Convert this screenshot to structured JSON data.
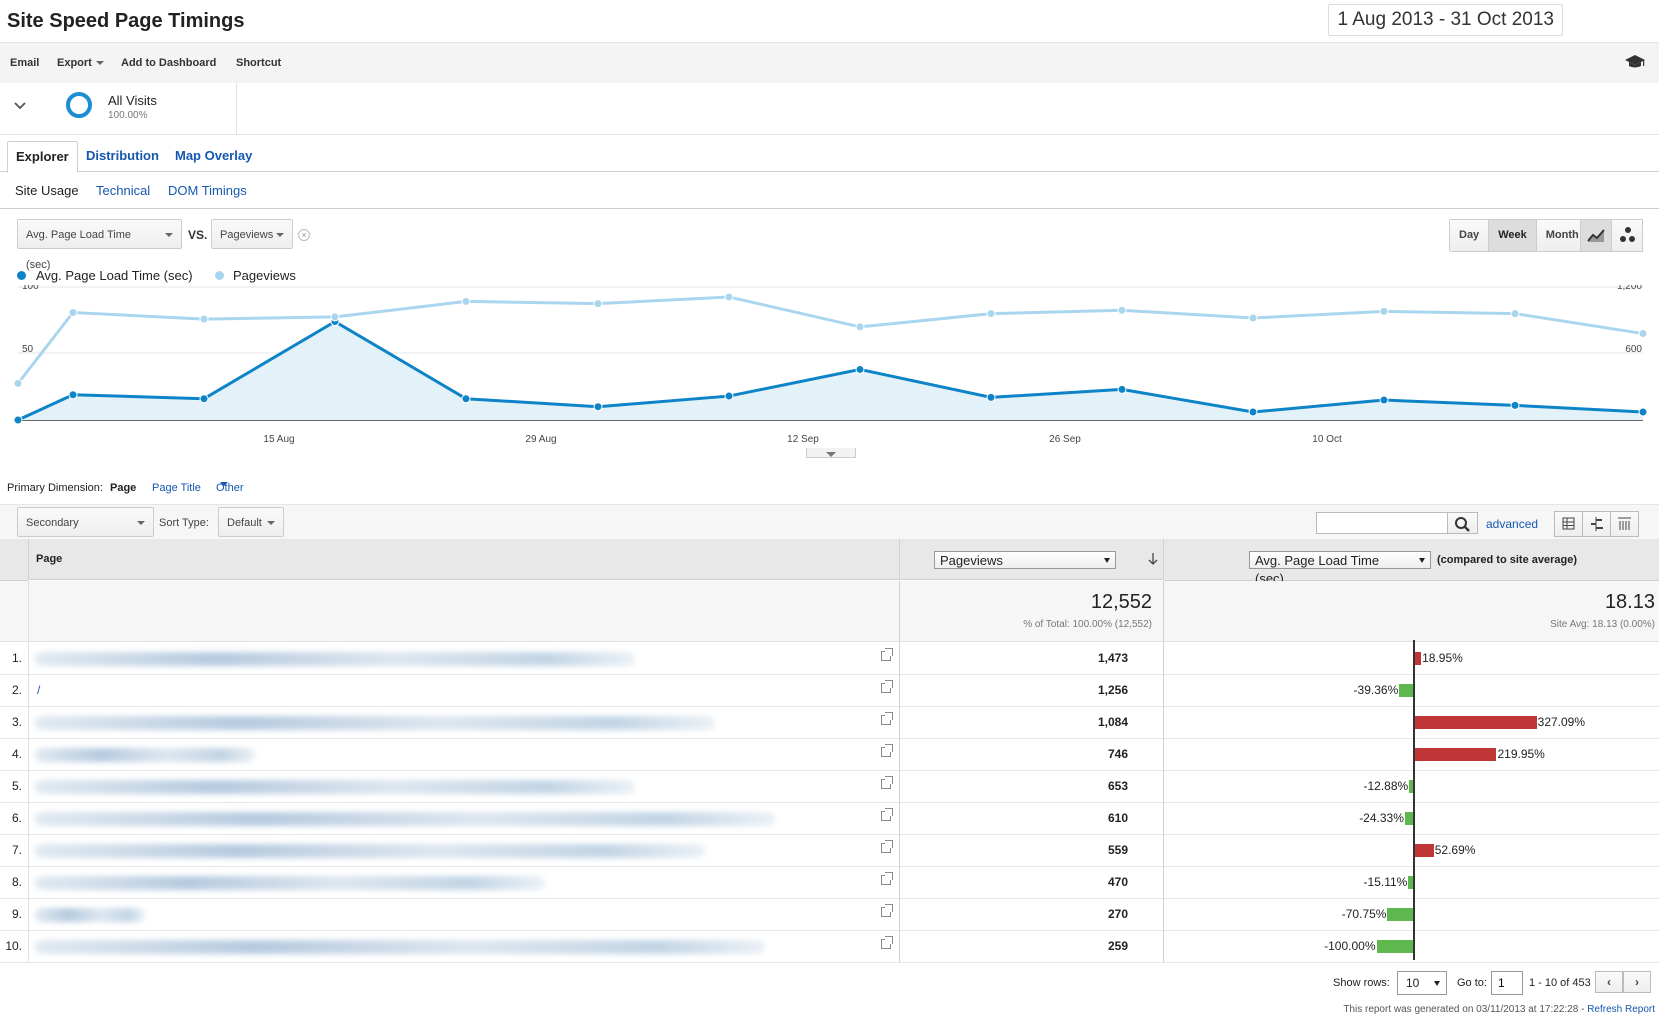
{
  "report": {
    "title": "Site Speed Page Timings",
    "date_range": "1 Aug 2013 - 31 Oct 2013"
  },
  "toolbar": {
    "email": "Email",
    "export": "Export",
    "add_to_dashboard": "Add to Dashboard",
    "shortcut": "Shortcut",
    "help_icon": "graduation-cap-icon"
  },
  "segment": {
    "name": "All Visits",
    "percent": "100.00%"
  },
  "tabs": [
    {
      "label": "Explorer",
      "active": true
    },
    {
      "label": "Distribution",
      "active": false
    },
    {
      "label": "Map Overlay",
      "active": false
    }
  ],
  "subtabs": [
    {
      "label": "Site Usage",
      "active": true
    },
    {
      "label": "Technical",
      "active": false
    },
    {
      "label": "DOM Timings",
      "active": false
    }
  ],
  "chart_controls": {
    "metric1": "Avg. Page Load Time (sec)",
    "vs": "VS.",
    "metric2": "Pageviews",
    "granularity": [
      {
        "label": "Day",
        "active": false
      },
      {
        "label": "Week",
        "active": true
      },
      {
        "label": "Month",
        "active": false
      }
    ]
  },
  "chart_data": {
    "type": "line",
    "x": [
      "1 Aug",
      "4 Aug",
      "11 Aug",
      "18 Aug",
      "25 Aug",
      "1 Sep",
      "8 Sep",
      "15 Sep",
      "22 Sep",
      "29 Sep",
      "6 Oct",
      "13 Oct",
      "20 Oct",
      "27 Oct",
      "31 Oct"
    ],
    "x_ticks": [
      "15 Aug",
      "29 Aug",
      "12 Sep",
      "26 Sep",
      "10 Oct"
    ],
    "x_tick_positions": [
      3.6,
      5.6,
      7.6,
      9.6,
      11.6
    ],
    "y_left": {
      "ticks": [
        "100",
        "50"
      ],
      "range": [
        0,
        100
      ]
    },
    "y_right": {
      "ticks": [
        "1,200",
        "600"
      ],
      "range": [
        0,
        1200
      ]
    },
    "legend_position": "top-left",
    "grid": true,
    "series": [
      {
        "name": "Avg. Page Load Time (sec)",
        "axis": "left",
        "color": "#0e84c8",
        "area": true,
        "values": [
          0,
          19,
          16,
          74,
          16,
          10,
          18,
          38,
          17,
          23,
          6,
          15,
          11,
          6,
          6
        ]
      },
      {
        "name": "Pageviews",
        "axis": "right",
        "color": "#a9d6ee",
        "area": false,
        "values": [
          330,
          970,
          910,
          930,
          1070,
          1050,
          1110,
          840,
          960,
          990,
          920,
          980,
          960,
          780,
          780
        ]
      }
    ]
  },
  "primary_dimension": {
    "label": "Primary Dimension:",
    "page": "Page",
    "page_title": "Page Title",
    "other": "Other"
  },
  "table_controls": {
    "secondary_dimension": "Secondary dimension",
    "sort_type_label": "Sort Type:",
    "sort_type_value": "Default",
    "search_placeholder": "",
    "advanced": "advanced"
  },
  "table": {
    "col_page": "Page",
    "col_metric": "Pageviews",
    "col_compare": "Avg. Page Load Time (sec)",
    "compare_suffix": "(compared to site average)",
    "total_pageviews": "12,552",
    "total_pageviews_sub": "% of Total: 100.00% (12,552)",
    "total_load": "18.13",
    "total_load_sub": "Site Avg: 18.13 (0.00%)",
    "rows": [
      {
        "idx": "1.",
        "page": "",
        "blur": 600,
        "pageviews": "1,473",
        "delta": 18.95,
        "delta_label": "18.95%"
      },
      {
        "idx": "2.",
        "page": "/",
        "blur": 0,
        "pageviews": "1,256",
        "delta": -39.36,
        "delta_label": "-39.36%"
      },
      {
        "idx": "3.",
        "page": "",
        "blur": 680,
        "pageviews": "1,084",
        "delta": 327.09,
        "delta_label": "327.09%"
      },
      {
        "idx": "4.",
        "page": "",
        "blur": 220,
        "pageviews": "746",
        "delta": 219.95,
        "delta_label": "219.95%"
      },
      {
        "idx": "5.",
        "page": "",
        "blur": 600,
        "pageviews": "653",
        "delta": -12.88,
        "delta_label": "-12.88%"
      },
      {
        "idx": "6.",
        "page": "",
        "blur": 740,
        "pageviews": "610",
        "delta": -24.33,
        "delta_label": "-24.33%"
      },
      {
        "idx": "7.",
        "page": "",
        "blur": 670,
        "pageviews": "559",
        "delta": 52.69,
        "delta_label": "52.69%"
      },
      {
        "idx": "8.",
        "page": "",
        "blur": 510,
        "pageviews": "470",
        "delta": -15.11,
        "delta_label": "-15.11%"
      },
      {
        "idx": "9.",
        "page": "",
        "blur": 110,
        "pageviews": "270",
        "delta": -70.75,
        "delta_label": "-70.75%"
      },
      {
        "idx": "10.",
        "page": "",
        "blur": 730,
        "pageviews": "259",
        "delta": -100.0,
        "delta_label": "-100.00%"
      }
    ]
  },
  "pagination": {
    "show_rows_label": "Show rows:",
    "show_rows_value": "10",
    "goto_label": "Go to:",
    "goto_value": "1",
    "range": "1 - 10 of 453",
    "prev": "‹",
    "next": "›"
  },
  "footer": {
    "generated": "This report was generated on 03/11/2013 at 17:22:28 -",
    "refresh": "Refresh Report"
  }
}
